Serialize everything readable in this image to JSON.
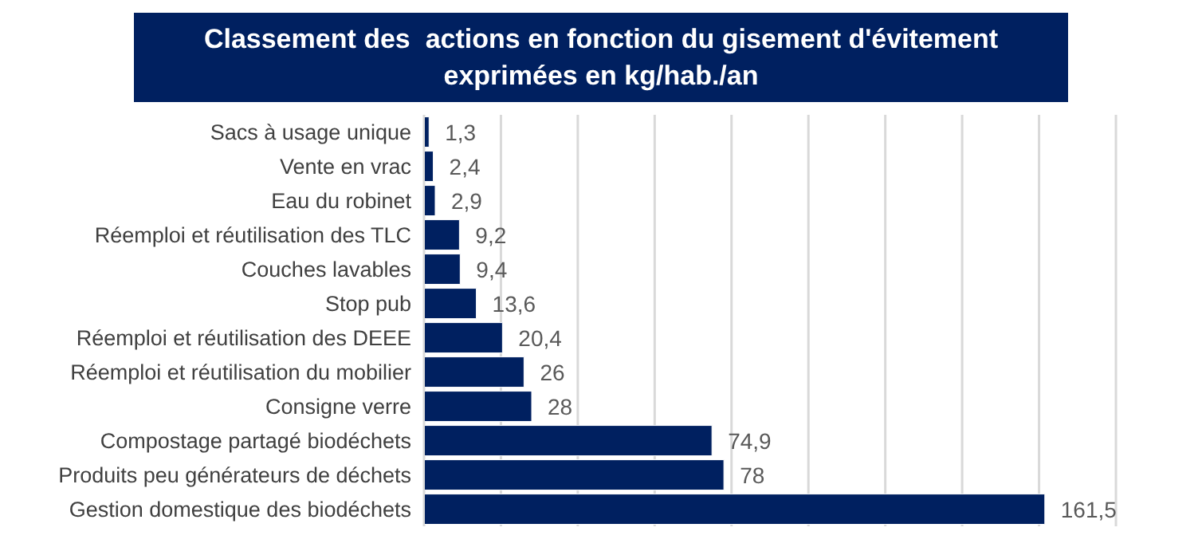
{
  "chart_data": {
    "type": "bar",
    "orientation": "horizontal",
    "title": "Classement des  actions en fonction du gisement d'évitement exprimées en kg/hab./an",
    "categories": [
      "Sacs à usage unique",
      "Vente en vrac",
      "Eau du robinet",
      "Réemploi et réutilisation des TLC",
      "Couches lavables",
      "Stop pub ",
      "Réemploi et réutilisation des DEEE",
      "Réemploi et réutilisation du mobilier",
      "Consigne verre",
      "Compostage partagé biodéchets",
      "Produits peu générateurs de déchets",
      "Gestion domestique des biodéchets"
    ],
    "values": [
      1.3,
      2.4,
      2.9,
      9.2,
      9.4,
      13.6,
      20.4,
      26,
      28,
      74.9,
      78,
      161.5
    ],
    "value_labels": [
      "1,3",
      "2,4",
      "2,9",
      "9,2",
      "9,4",
      "13,6",
      "20,4",
      "26",
      "28",
      "74,9",
      "78",
      "161,5"
    ],
    "color": "#002060",
    "xlim": [
      0,
      180
    ],
    "xticks": [
      {
        "value": 0,
        "label": null
      },
      {
        "value": 20,
        "label": null
      },
      {
        "value": 40,
        "label": null
      },
      {
        "value": 60,
        "label": null
      },
      {
        "value": 80,
        "label": null
      },
      {
        "value": 100,
        "label": null
      },
      {
        "value": 120,
        "label": null
      },
      {
        "value": 140,
        "label": null
      },
      {
        "value": 160,
        "label": null
      },
      {
        "value": 180,
        "label": null
      }
    ],
    "grid": "x",
    "tick_labels": "y"
  }
}
